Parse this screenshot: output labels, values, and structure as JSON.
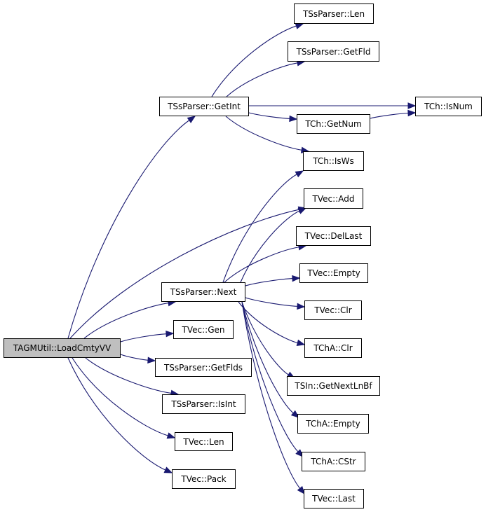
{
  "colors": {
    "edge": "#191970",
    "root_fill": "#bfbfbf",
    "node_fill": "#ffffff",
    "border": "#000000"
  },
  "nodes": [
    {
      "id": "root",
      "label": "TAGMUtil::LoadCmtyVV",
      "root": true
    },
    {
      "id": "getint",
      "label": "TSsParser::GetInt"
    },
    {
      "id": "sslen",
      "label": "TSsParser::Len"
    },
    {
      "id": "getfld",
      "label": "TSsParser::GetFld"
    },
    {
      "id": "isnum",
      "label": "TCh::IsNum"
    },
    {
      "id": "getnum",
      "label": "TCh::GetNum"
    },
    {
      "id": "isws",
      "label": "TCh::IsWs"
    },
    {
      "id": "add",
      "label": "TVec::Add"
    },
    {
      "id": "dellast",
      "label": "TVec::DelLast"
    },
    {
      "id": "empty",
      "label": "TVec::Empty"
    },
    {
      "id": "clr",
      "label": "TVec::Clr"
    },
    {
      "id": "next",
      "label": "TSsParser::Next"
    },
    {
      "id": "gen",
      "label": "TVec::Gen"
    },
    {
      "id": "chaclr",
      "label": "TChA::Clr"
    },
    {
      "id": "getflds",
      "label": "TSsParser::GetFlds"
    },
    {
      "id": "getnextlnbf",
      "label": "TSIn::GetNextLnBf"
    },
    {
      "id": "isint",
      "label": "TSsParser::IsInt"
    },
    {
      "id": "chaempty",
      "label": "TChA::Empty"
    },
    {
      "id": "veclen",
      "label": "TVec::Len"
    },
    {
      "id": "cstr",
      "label": "TChA::CStr"
    },
    {
      "id": "pack",
      "label": "TVec::Pack"
    },
    {
      "id": "last",
      "label": "TVec::Last"
    }
  ],
  "edges": [
    [
      "root",
      "getint"
    ],
    [
      "root",
      "add"
    ],
    [
      "root",
      "next"
    ],
    [
      "root",
      "gen"
    ],
    [
      "root",
      "getflds"
    ],
    [
      "root",
      "isint"
    ],
    [
      "root",
      "veclen"
    ],
    [
      "root",
      "pack"
    ],
    [
      "getint",
      "sslen"
    ],
    [
      "getint",
      "getfld"
    ],
    [
      "getint",
      "isnum"
    ],
    [
      "getint",
      "getnum"
    ],
    [
      "getnum",
      "isnum"
    ],
    [
      "getint",
      "isws"
    ],
    [
      "next",
      "isws"
    ],
    [
      "next",
      "add"
    ],
    [
      "next",
      "dellast"
    ],
    [
      "next",
      "empty"
    ],
    [
      "next",
      "clr"
    ],
    [
      "next",
      "chaclr"
    ],
    [
      "next",
      "getnextlnbf"
    ],
    [
      "next",
      "chaempty"
    ],
    [
      "next",
      "cstr"
    ],
    [
      "next",
      "last"
    ]
  ]
}
